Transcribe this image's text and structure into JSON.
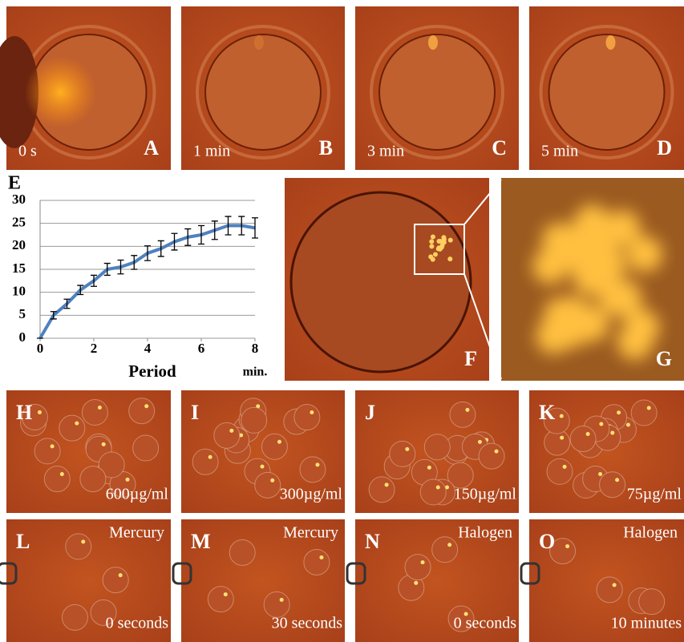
{
  "panels": [
    {
      "label": "A",
      "caption": "0 s"
    },
    {
      "label": "B",
      "caption": "1 min"
    },
    {
      "label": "C",
      "caption": "3 min"
    },
    {
      "label": "D",
      "caption": "5 min"
    },
    {
      "label": "E"
    },
    {
      "label": "F"
    },
    {
      "label": "G"
    },
    {
      "label": "H",
      "caption": "600µg/ml"
    },
    {
      "label": "I",
      "caption": "300µg/ml"
    },
    {
      "label": "J",
      "caption": "150µg/ml"
    },
    {
      "label": "K",
      "caption": "75µg/ml"
    },
    {
      "label": "L",
      "top_caption": "Mercury",
      "caption": "0 seconds"
    },
    {
      "label": "M",
      "top_caption": "Mercury",
      "caption": "30 seconds"
    },
    {
      "label": "N",
      "top_caption": "Halogen",
      "caption": "0 seconds"
    },
    {
      "label": "O",
      "top_caption": "Halogen",
      "caption": "10 minutes"
    }
  ],
  "chart_data": {
    "type": "line",
    "x_label": "Period",
    "x_unit": "min.",
    "x": [
      0,
      0.5,
      1,
      1.5,
      2,
      2.5,
      3,
      3.5,
      4,
      4.5,
      5,
      5.5,
      6,
      6.5,
      7,
      7.5,
      8
    ],
    "series": [
      {
        "color": "#4f81bd",
        "values": [
          0,
          5,
          7.5,
          10.5,
          12.5,
          15,
          15.5,
          16.5,
          18.5,
          19.5,
          21,
          22,
          22.5,
          23.5,
          24.5,
          24.5,
          24
        ],
        "errors": [
          0,
          0.8,
          1,
          1,
          1.2,
          1.3,
          1.5,
          1.5,
          1.6,
          1.7,
          1.8,
          1.8,
          2,
          2,
          2,
          2,
          2.2
        ]
      }
    ],
    "xlim": [
      0,
      8
    ],
    "xticks": [
      0,
      2,
      4,
      6,
      8
    ],
    "ylim": [
      0,
      30
    ],
    "yticks": [
      0,
      5,
      10,
      15,
      20,
      25,
      30
    ],
    "grid": true
  }
}
